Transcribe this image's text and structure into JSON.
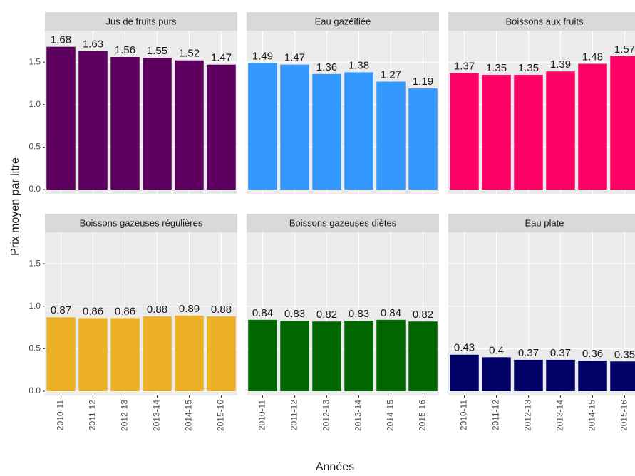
{
  "chart_data": {
    "type": "bar",
    "xlabel": "Années",
    "ylabel": "Prix moyen par litre",
    "categories": [
      "2010-11",
      "2011-12",
      "2012-13",
      "2013-14",
      "2014-15",
      "2015-16"
    ],
    "ylim": [
      -0.05,
      1.87
    ],
    "yticks": [
      {
        "value": 0,
        "label": "0.0"
      },
      0.5,
      {
        "value": 1,
        "label": "1.0"
      },
      1.5
    ],
    "grid": true,
    "facets": [
      {
        "title": "Jus de fruits purs",
        "color": "#5e0060",
        "values": [
          1.68,
          1.63,
          1.56,
          1.55,
          1.52,
          1.47
        ]
      },
      {
        "title": "Eau gazéifiée",
        "color": "#3399ff",
        "values": [
          1.49,
          1.47,
          1.36,
          1.38,
          1.27,
          1.19
        ]
      },
      {
        "title": "Boissons aux fruits",
        "color": "#ff0066",
        "values": [
          1.37,
          1.35,
          1.35,
          1.39,
          1.48,
          1.57
        ]
      },
      {
        "title": "Boissons gazeuses régulières",
        "color": "#ecb124",
        "values": [
          0.87,
          0.86,
          0.86,
          0.88,
          0.89,
          0.88
        ]
      },
      {
        "title": "Boissons gazeuses diètes",
        "color": "#006600",
        "values": [
          0.84,
          0.83,
          0.82,
          0.83,
          0.84,
          0.82
        ]
      },
      {
        "title": "Eau plate",
        "color": "#000066",
        "values": [
          0.43,
          0.4,
          0.37,
          0.37,
          0.36,
          0.35
        ]
      }
    ]
  }
}
